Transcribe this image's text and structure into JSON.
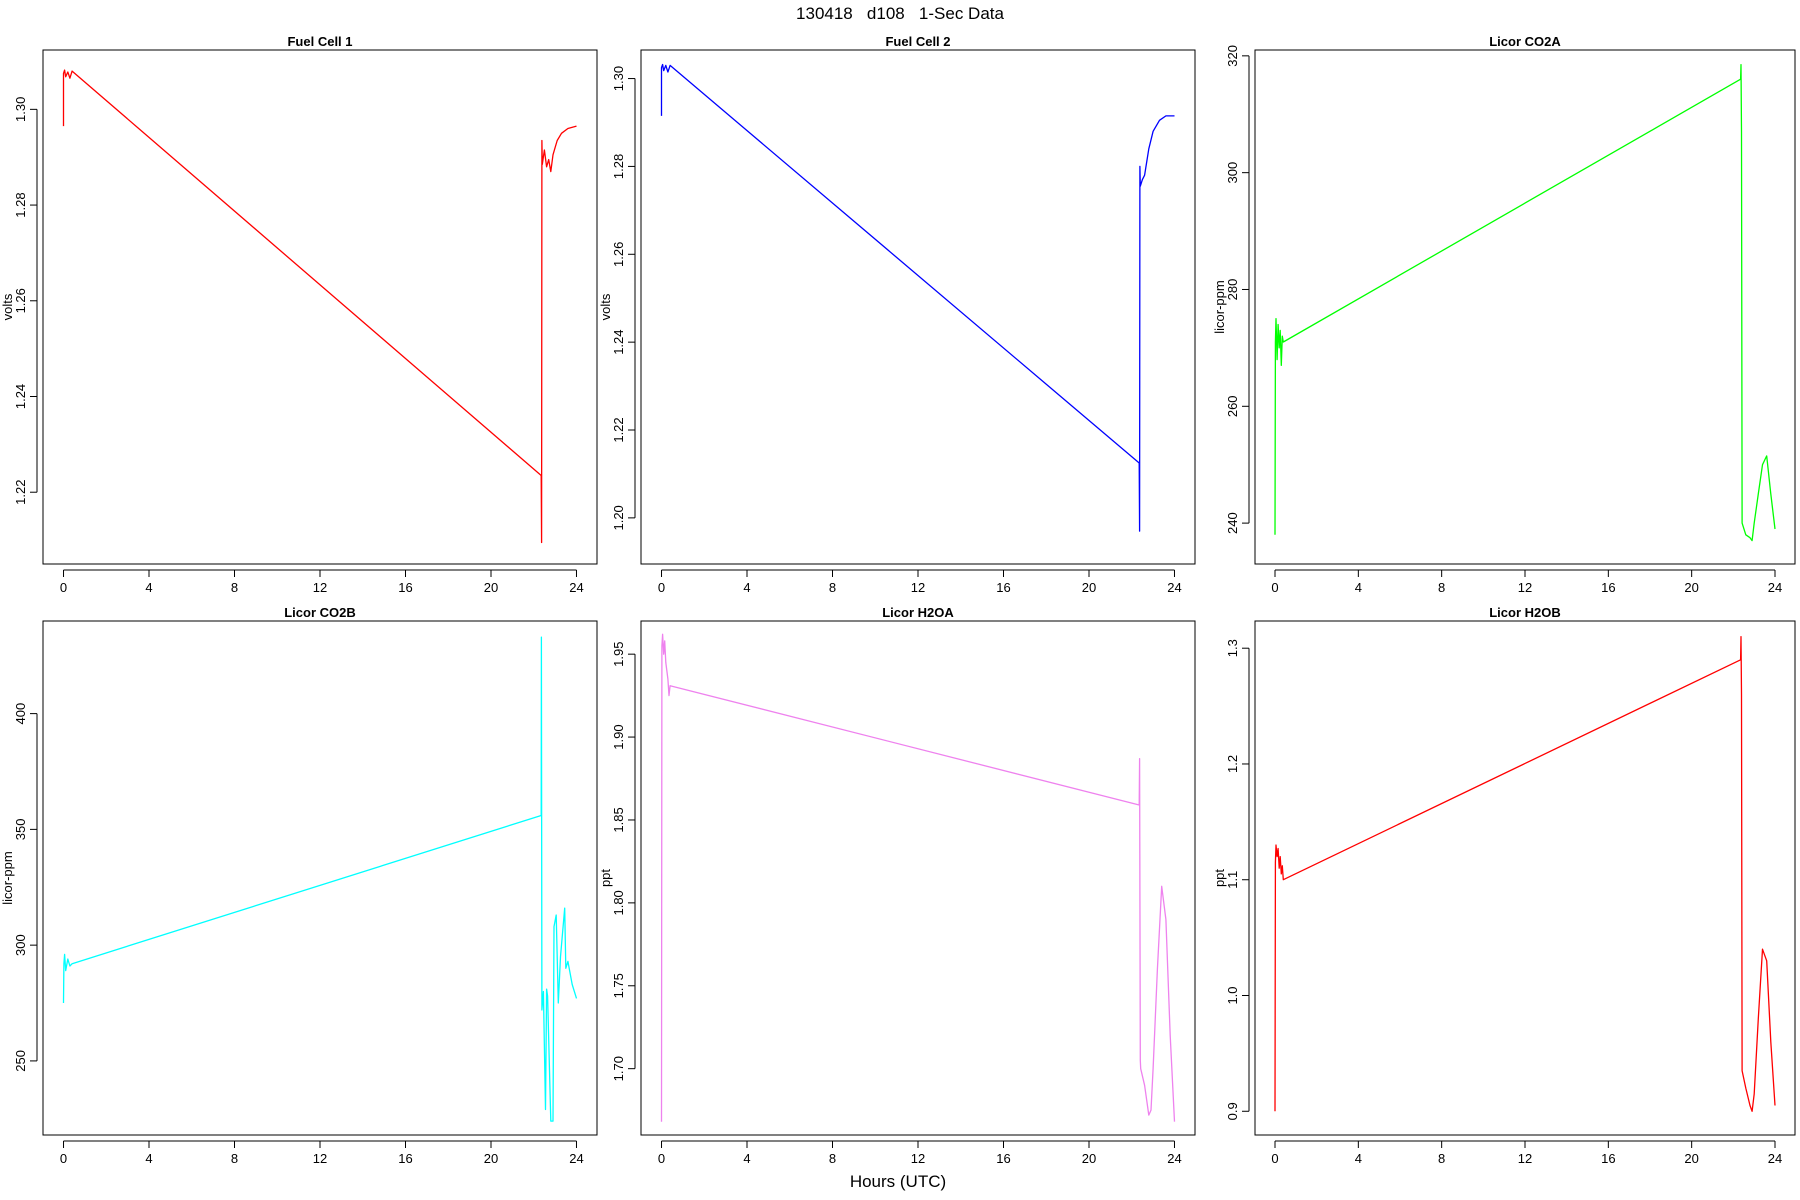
{
  "figure": {
    "title": "130418   d108   1-Sec Data",
    "xlabel": "Hours (UTC)"
  },
  "chart_data": [
    {
      "type": "line",
      "title": "Fuel Cell 1",
      "xlabel": "",
      "ylabel": "volts",
      "color": "#ff0000",
      "xlim": [
        -0.96,
        24.96
      ],
      "ylim": [
        1.205,
        1.3124
      ],
      "xticks": [
        0,
        4,
        8,
        12,
        16,
        20,
        24
      ],
      "yticks": [
        1.22,
        1.24,
        1.26,
        1.28,
        1.3
      ],
      "ytick_labels": [
        "1.22",
        "1.24",
        "1.26",
        "1.28",
        "1.30"
      ],
      "x": [
        0.0,
        0.0,
        0.05,
        0.1,
        0.2,
        0.3,
        0.4,
        22.35,
        22.37,
        22.38,
        22.4,
        22.5,
        22.6,
        22.7,
        22.8,
        22.9,
        23.0,
        23.1,
        23.3,
        23.6,
        24.0
      ],
      "y": [
        1.2965,
        1.3075,
        1.3082,
        1.3068,
        1.3078,
        1.3065,
        1.308,
        1.2235,
        1.2095,
        1.2935,
        1.2885,
        1.2915,
        1.288,
        1.2895,
        1.287,
        1.2905,
        1.292,
        1.2935,
        1.295,
        1.296,
        1.2965
      ]
    },
    {
      "type": "line",
      "title": "Fuel Cell 2",
      "xlabel": "",
      "ylabel": "volts",
      "color": "#0000ff",
      "xlim": [
        -0.96,
        24.96
      ],
      "ylim": [
        1.1895,
        1.3065
      ],
      "xticks": [
        0,
        4,
        8,
        12,
        16,
        20,
        24
      ],
      "yticks": [
        1.2,
        1.22,
        1.24,
        1.26,
        1.28,
        1.3
      ],
      "ytick_labels": [
        "1.20",
        "1.22",
        "1.24",
        "1.26",
        "1.28",
        "1.30"
      ],
      "x": [
        0.0,
        0.0,
        0.05,
        0.1,
        0.2,
        0.3,
        0.4,
        22.35,
        22.37,
        22.38,
        22.4,
        22.5,
        22.6,
        22.7,
        22.8,
        23.0,
        23.3,
        23.6,
        24.0
      ],
      "y": [
        1.2915,
        1.3025,
        1.3032,
        1.3018,
        1.303,
        1.3015,
        1.303,
        1.2125,
        1.197,
        1.28,
        1.2755,
        1.277,
        1.278,
        1.281,
        1.284,
        1.288,
        1.2905,
        1.2915,
        1.2915
      ]
    },
    {
      "type": "line",
      "title": "Licor CO2A",
      "xlabel": "",
      "ylabel": "licor-ppm",
      "color": "#00ff00",
      "xlim": [
        -0.96,
        24.96
      ],
      "ylim": [
        233.0,
        321.0
      ],
      "xticks": [
        0,
        4,
        8,
        12,
        16,
        20,
        24
      ],
      "yticks": [
        240,
        260,
        280,
        300,
        320
      ],
      "ytick_labels": [
        "240",
        "260",
        "280",
        "300",
        "320"
      ],
      "x": [
        0.0,
        0.02,
        0.05,
        0.1,
        0.15,
        0.2,
        0.25,
        0.3,
        0.35,
        0.4,
        22.35,
        22.37,
        22.39,
        22.42,
        22.6,
        22.8,
        22.9,
        23.0,
        23.2,
        23.4,
        23.6,
        23.8,
        24.0
      ],
      "y": [
        238.0,
        271.0,
        275.0,
        268.0,
        274.0,
        270.0,
        273.0,
        267.0,
        272.0,
        271.0,
        316.0,
        318.5,
        307.0,
        240.0,
        238.0,
        237.5,
        237.0,
        240.0,
        245.0,
        250.0,
        251.5,
        245.0,
        239.0
      ]
    },
    {
      "type": "line",
      "title": "Licor CO2B",
      "xlabel": "",
      "ylabel": "licor-ppm",
      "color": "#00ffff",
      "xlim": [
        -0.96,
        24.96
      ],
      "ylim": [
        218.0,
        440.0
      ],
      "xticks": [
        0,
        4,
        8,
        12,
        16,
        20,
        24
      ],
      "yticks": [
        250,
        300,
        350,
        400
      ],
      "ytick_labels": [
        "250",
        "300",
        "350",
        "400"
      ],
      "x": [
        0.0,
        0.02,
        0.05,
        0.1,
        0.2,
        0.3,
        0.4,
        22.35,
        22.36,
        22.38,
        22.45,
        22.55,
        22.6,
        22.65,
        22.8,
        22.9,
        22.95,
        23.05,
        23.15,
        23.25,
        23.3,
        23.45,
        23.5,
        23.6,
        23.8,
        24.0
      ],
      "y": [
        275.0,
        292.0,
        296.0,
        289.0,
        294.0,
        291.0,
        292.0,
        356.0,
        433.0,
        272.0,
        280.0,
        229.0,
        281.0,
        278.0,
        224.0,
        224.0,
        308.0,
        313.0,
        275.0,
        295.0,
        300.0,
        316.0,
        290.0,
        293.0,
        283.0,
        277.0
      ]
    },
    {
      "type": "line",
      "title": "Licor H2OA",
      "xlabel": "",
      "ylabel": "ppt",
      "color": "#ee82ee",
      "xlim": [
        -0.96,
        24.96
      ],
      "ylim": [
        1.66,
        1.97
      ],
      "xticks": [
        0,
        4,
        8,
        12,
        16,
        20,
        24
      ],
      "yticks": [
        1.7,
        1.75,
        1.8,
        1.85,
        1.9,
        1.95
      ],
      "ytick_labels": [
        "1.70",
        "1.75",
        "1.80",
        "1.85",
        "1.90",
        "1.95"
      ],
      "x": [
        0.0,
        0.02,
        0.05,
        0.1,
        0.15,
        0.2,
        0.3,
        0.35,
        0.4,
        22.35,
        22.37,
        22.4,
        22.42,
        22.6,
        22.8,
        22.9,
        23.0,
        23.2,
        23.4,
        23.6,
        23.8,
        24.0
      ],
      "y": [
        1.668,
        1.955,
        1.962,
        1.95,
        1.958,
        1.945,
        1.935,
        1.925,
        1.931,
        1.859,
        1.887,
        1.705,
        1.7,
        1.69,
        1.672,
        1.675,
        1.7,
        1.76,
        1.81,
        1.79,
        1.72,
        1.668
      ]
    },
    {
      "type": "line",
      "title": "Licor H2OB",
      "xlabel": "",
      "ylabel": "ppt",
      "color": "#ff0000",
      "xlim": [
        -0.96,
        24.96
      ],
      "ylim": [
        0.8795,
        1.3235
      ],
      "xticks": [
        0,
        4,
        8,
        12,
        16,
        20,
        24
      ],
      "yticks": [
        0.9,
        1.0,
        1.1,
        1.2,
        1.3
      ],
      "ytick_labels": [
        "0.9",
        "1.0",
        "1.1",
        "1.2",
        "1.3"
      ],
      "x": [
        0.0,
        0.02,
        0.05,
        0.1,
        0.15,
        0.2,
        0.25,
        0.3,
        0.35,
        0.4,
        22.35,
        22.37,
        22.39,
        22.42,
        22.6,
        22.8,
        22.9,
        23.0,
        23.2,
        23.4,
        23.6,
        23.8,
        24.0
      ],
      "y": [
        0.9,
        1.115,
        1.13,
        1.12,
        1.127,
        1.11,
        1.12,
        1.105,
        1.112,
        1.1,
        1.29,
        1.31,
        1.26,
        0.935,
        0.92,
        0.905,
        0.9,
        0.915,
        0.98,
        1.04,
        1.03,
        0.96,
        0.905
      ]
    }
  ]
}
